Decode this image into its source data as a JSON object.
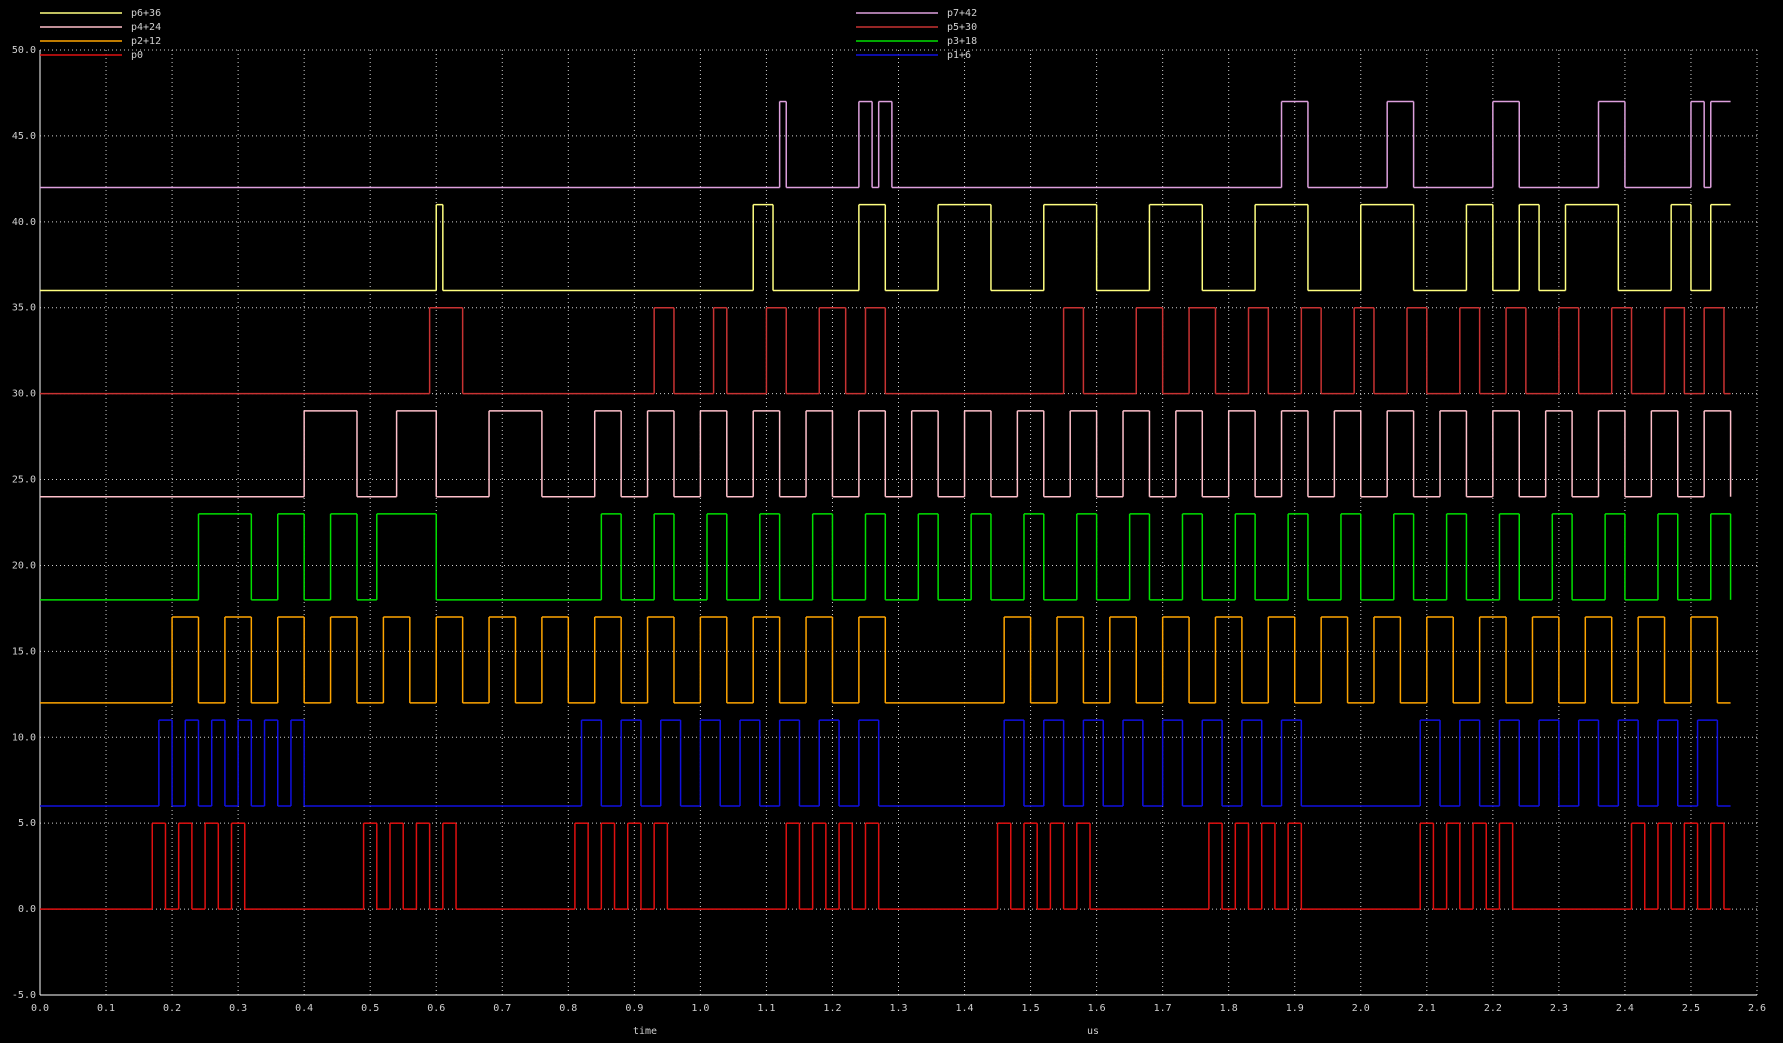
{
  "chart_data": {
    "type": "line",
    "xlabel": "time",
    "x_unit": "us",
    "grid": true,
    "xlim": [
      0,
      2.6
    ],
    "ylim": [
      -5,
      50
    ],
    "xticks": [
      {
        "value": 0,
        "label": "0.0"
      },
      0.1,
      0.2,
      0.3,
      0.4,
      0.5,
      0.6,
      0.7,
      0.8,
      0.9,
      {
        "value": 1,
        "label": "1.0"
      },
      1.1,
      1.2,
      1.3,
      1.4,
      1.5,
      1.6,
      1.7,
      1.8,
      1.9,
      {
        "value": 2,
        "label": "2.0"
      },
      2.1,
      2.2,
      2.3,
      2.4,
      2.5,
      2.6
    ],
    "yticks": [
      {
        "value": -5,
        "label": "-5.0"
      },
      {
        "value": 0,
        "label": "0.0"
      },
      {
        "value": 5,
        "label": "5.0"
      },
      {
        "value": 10,
        "label": "10.0"
      },
      {
        "value": 15,
        "label": "15.0"
      },
      {
        "value": 20,
        "label": "20.0"
      },
      {
        "value": 25,
        "label": "25.0"
      },
      {
        "value": 30,
        "label": "30.0"
      },
      {
        "value": 35,
        "label": "35.0"
      },
      {
        "value": 40,
        "label": "40.0"
      },
      {
        "value": 45,
        "label": "45.0"
      },
      {
        "value": 50,
        "label": "50.0"
      }
    ],
    "series": [
      {
        "name": "p6+36",
        "color": "#ffff80",
        "x": [
          0,
          0.6,
          0.61,
          1.08,
          1.11,
          1.24,
          1.28,
          1.36,
          1.44,
          1.52,
          1.6,
          1.68,
          1.76,
          1.84,
          1.92,
          2.0,
          2.08,
          2.16,
          2.2,
          2.24,
          2.27,
          2.31,
          2.39,
          2.47,
          2.5,
          2.53,
          2.56
        ],
        "values": [
          36,
          41,
          36,
          41,
          36,
          41,
          36,
          41,
          36,
          41,
          36,
          41,
          36,
          41,
          36,
          41,
          36,
          41,
          36,
          41,
          36,
          41,
          36,
          41,
          36,
          41,
          41
        ]
      },
      {
        "name": "p4+24",
        "color": "#ffc0cb",
        "x": [
          0,
          0.4,
          0.48,
          0.54,
          0.6,
          0.68,
          0.76,
          0.84,
          0.88,
          0.92,
          0.96,
          1.0,
          1.04,
          1.08,
          1.12,
          1.16,
          1.2,
          1.24,
          1.28,
          1.32,
          1.36,
          1.4,
          1.44,
          1.48,
          1.52,
          1.56,
          1.6,
          1.64,
          1.68,
          1.72,
          1.76,
          1.8,
          1.84,
          1.88,
          1.92,
          1.96,
          2.0,
          2.04,
          2.08,
          2.12,
          2.16,
          2.2,
          2.24,
          2.28,
          2.32,
          2.36,
          2.4,
          2.44,
          2.48,
          2.52,
          2.56
        ],
        "values": [
          24,
          29,
          24,
          29,
          24,
          29,
          24,
          29,
          24,
          29,
          24,
          29,
          24,
          29,
          24,
          29,
          24,
          29,
          24,
          29,
          24,
          29,
          24,
          29,
          24,
          29,
          24,
          29,
          24,
          29,
          24,
          29,
          24,
          29,
          24,
          29,
          24,
          29,
          24,
          29,
          24,
          29,
          24,
          29,
          24,
          29,
          24,
          29,
          24,
          29,
          24
        ]
      },
      {
        "name": "p2+12",
        "color": "#ffa500",
        "x": [
          0,
          0.2,
          0.24,
          0.28,
          0.32,
          0.36,
          0.4,
          0.44,
          0.48,
          0.52,
          0.56,
          0.6,
          0.64,
          0.68,
          0.72,
          0.76,
          0.8,
          0.84,
          0.88,
          0.92,
          0.96,
          1.0,
          1.04,
          1.08,
          1.12,
          1.16,
          1.2,
          1.24,
          1.28,
          1.46,
          1.5,
          1.54,
          1.58,
          1.62,
          1.66,
          1.7,
          1.74,
          1.78,
          1.82,
          1.86,
          1.9,
          1.94,
          1.98,
          2.02,
          2.06,
          2.1,
          2.14,
          2.18,
          2.22,
          2.26,
          2.3,
          2.34,
          2.38,
          2.42,
          2.46,
          2.5,
          2.54,
          2.56
        ],
        "values": [
          12,
          17,
          12,
          17,
          12,
          17,
          12,
          17,
          12,
          17,
          12,
          17,
          12,
          17,
          12,
          17,
          12,
          17,
          12,
          17,
          12,
          17,
          12,
          17,
          12,
          17,
          12,
          17,
          12,
          17,
          12,
          17,
          12,
          17,
          12,
          17,
          12,
          17,
          12,
          17,
          12,
          17,
          12,
          17,
          12,
          17,
          12,
          17,
          12,
          17,
          12,
          17,
          12,
          17,
          12,
          17,
          12,
          12
        ]
      },
      {
        "name": "p0",
        "color": "#e01010",
        "x": [
          0,
          0.17,
          0.19,
          0.21,
          0.23,
          0.25,
          0.27,
          0.29,
          0.31,
          0.49,
          0.51,
          0.53,
          0.55,
          0.57,
          0.59,
          0.61,
          0.63,
          0.81,
          0.83,
          0.85,
          0.87,
          0.89,
          0.91,
          0.93,
          0.95,
          1.13,
          1.15,
          1.17,
          1.19,
          1.21,
          1.23,
          1.25,
          1.27,
          1.45,
          1.47,
          1.49,
          1.51,
          1.53,
          1.55,
          1.57,
          1.59,
          1.77,
          1.79,
          1.81,
          1.83,
          1.85,
          1.87,
          1.89,
          1.91,
          2.09,
          2.11,
          2.13,
          2.15,
          2.17,
          2.19,
          2.21,
          2.23,
          2.41,
          2.43,
          2.45,
          2.47,
          2.49,
          2.51,
          2.53,
          2.55,
          2.56
        ],
        "values": [
          0,
          5,
          0,
          5,
          0,
          5,
          0,
          5,
          0,
          5,
          0,
          5,
          0,
          5,
          0,
          5,
          0,
          5,
          0,
          5,
          0,
          5,
          0,
          5,
          0,
          5,
          0,
          5,
          0,
          5,
          0,
          5,
          0,
          5,
          0,
          5,
          0,
          5,
          0,
          5,
          0,
          5,
          0,
          5,
          0,
          5,
          0,
          5,
          0,
          5,
          0,
          5,
          0,
          5,
          0,
          5,
          0,
          5,
          0,
          5,
          0,
          5,
          0,
          5,
          0,
          0
        ]
      },
      {
        "name": "p7+42",
        "color": "#dda0dd",
        "x": [
          0,
          1.12,
          1.13,
          1.24,
          1.26,
          1.27,
          1.29,
          1.88,
          1.92,
          2.04,
          2.08,
          2.2,
          2.24,
          2.36,
          2.4,
          2.5,
          2.52,
          2.53,
          2.56
        ],
        "values": [
          42,
          47,
          42,
          47,
          42,
          47,
          42,
          47,
          42,
          47,
          42,
          47,
          42,
          47,
          42,
          47,
          42,
          47,
          47
        ]
      },
      {
        "name": "p5+30",
        "color": "#c83232",
        "x": [
          0,
          0.59,
          0.64,
          0.93,
          0.96,
          1.02,
          1.04,
          1.1,
          1.13,
          1.18,
          1.22,
          1.25,
          1.28,
          1.55,
          1.58,
          1.66,
          1.7,
          1.74,
          1.78,
          1.83,
          1.86,
          1.91,
          1.94,
          1.99,
          2.02,
          2.07,
          2.1,
          2.15,
          2.18,
          2.22,
          2.25,
          2.3,
          2.33,
          2.38,
          2.41,
          2.46,
          2.49,
          2.52,
          2.55,
          2.56
        ],
        "values": [
          30,
          35,
          30,
          35,
          30,
          35,
          30,
          35,
          30,
          35,
          30,
          35,
          30,
          35,
          30,
          35,
          30,
          35,
          30,
          35,
          30,
          35,
          30,
          35,
          30,
          35,
          30,
          35,
          30,
          35,
          30,
          35,
          30,
          35,
          30,
          35,
          30,
          35,
          30,
          30
        ]
      },
      {
        "name": "p3+18",
        "color": "#00e000",
        "x": [
          0,
          0.24,
          0.32,
          0.36,
          0.4,
          0.44,
          0.48,
          0.51,
          0.6,
          0.85,
          0.88,
          0.93,
          0.96,
          1.01,
          1.04,
          1.09,
          1.12,
          1.17,
          1.2,
          1.25,
          1.28,
          1.33,
          1.36,
          1.41,
          1.44,
          1.49,
          1.52,
          1.57,
          1.6,
          1.65,
          1.68,
          1.73,
          1.76,
          1.81,
          1.84,
          1.89,
          1.92,
          1.97,
          2.0,
          2.05,
          2.08,
          2.13,
          2.16,
          2.21,
          2.24,
          2.29,
          2.32,
          2.37,
          2.4,
          2.45,
          2.48,
          2.53,
          2.56
        ],
        "values": [
          18,
          23,
          18,
          23,
          18,
          23,
          18,
          23,
          18,
          23,
          18,
          23,
          18,
          23,
          18,
          23,
          18,
          23,
          18,
          23,
          18,
          23,
          18,
          23,
          18,
          23,
          18,
          23,
          18,
          23,
          18,
          23,
          18,
          23,
          18,
          23,
          18,
          23,
          18,
          23,
          18,
          23,
          18,
          23,
          18,
          23,
          18,
          23,
          18,
          23,
          18,
          23,
          18
        ]
      },
      {
        "name": "p1+6",
        "color": "#1010e0",
        "x": [
          0,
          0.18,
          0.2,
          0.22,
          0.24,
          0.26,
          0.28,
          0.3,
          0.32,
          0.34,
          0.36,
          0.38,
          0.4,
          0.82,
          0.85,
          0.88,
          0.91,
          0.94,
          0.97,
          1.0,
          1.03,
          1.06,
          1.09,
          1.12,
          1.15,
          1.18,
          1.21,
          1.24,
          1.27,
          1.46,
          1.49,
          1.52,
          1.55,
          1.58,
          1.61,
          1.64,
          1.67,
          1.7,
          1.73,
          1.76,
          1.79,
          1.82,
          1.85,
          1.88,
          1.91,
          2.09,
          2.12,
          2.15,
          2.18,
          2.21,
          2.24,
          2.27,
          2.3,
          2.33,
          2.36,
          2.39,
          2.42,
          2.45,
          2.48,
          2.51,
          2.54,
          2.56
        ],
        "values": [
          6,
          11,
          6,
          11,
          6,
          11,
          6,
          11,
          6,
          11,
          6,
          11,
          6,
          11,
          6,
          11,
          6,
          11,
          6,
          11,
          6,
          11,
          6,
          11,
          6,
          11,
          6,
          11,
          6,
          11,
          6,
          11,
          6,
          11,
          6,
          11,
          6,
          11,
          6,
          11,
          6,
          11,
          6,
          11,
          6,
          11,
          6,
          11,
          6,
          11,
          6,
          11,
          6,
          11,
          6,
          11,
          6,
          11,
          6,
          11,
          6,
          6
        ]
      }
    ]
  }
}
